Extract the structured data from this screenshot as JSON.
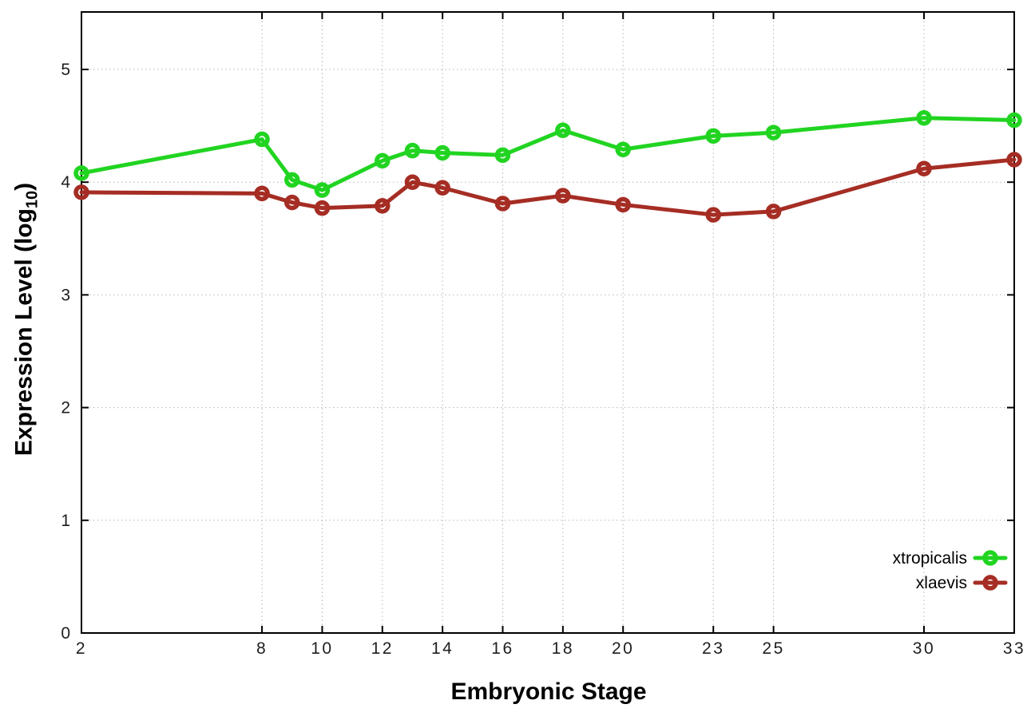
{
  "chart_data": {
    "type": "line",
    "title": "",
    "xlabel": "Embryonic Stage",
    "ylabel": "Expression Level (log10)",
    "ylabel_prefix": "Expression Level (log",
    "ylabel_sub": "10",
    "ylabel_suffix": ")",
    "x": [
      2,
      8,
      9,
      10,
      12,
      13,
      14,
      16,
      18,
      20,
      23,
      25,
      30,
      33
    ],
    "series": [
      {
        "name": "xtropicalis",
        "color": "#21d421",
        "values": [
          4.08,
          4.38,
          4.02,
          3.93,
          4.19,
          4.28,
          4.26,
          4.24,
          4.46,
          4.29,
          4.41,
          4.44,
          4.57,
          4.55
        ]
      },
      {
        "name": "xlaevis",
        "color": "#a52d24",
        "values": [
          3.91,
          3.9,
          3.82,
          3.77,
          3.79,
          4.0,
          3.95,
          3.81,
          3.88,
          3.8,
          3.71,
          3.74,
          4.12,
          4.2
        ]
      }
    ],
    "xticks": [
      "2",
      "8",
      "10",
      "12",
      "14",
      "16",
      "18",
      "20",
      "23",
      "25",
      "30",
      "33"
    ],
    "xtick_values": [
      2,
      8,
      10,
      12,
      14,
      16,
      18,
      20,
      23,
      25,
      30,
      33
    ],
    "yticks": [
      "0",
      "1",
      "2",
      "3",
      "4",
      "5"
    ],
    "ytick_values": [
      0,
      1,
      2,
      3,
      4,
      5
    ],
    "xlim": [
      2,
      33
    ],
    "ylim": [
      0,
      5.51
    ],
    "grid": true,
    "legend_position": "inside-bottom-right",
    "marker": "open-circle",
    "axis_color": "#000000",
    "grid_color": "#b4b4b4",
    "background": "#ffffff"
  }
}
